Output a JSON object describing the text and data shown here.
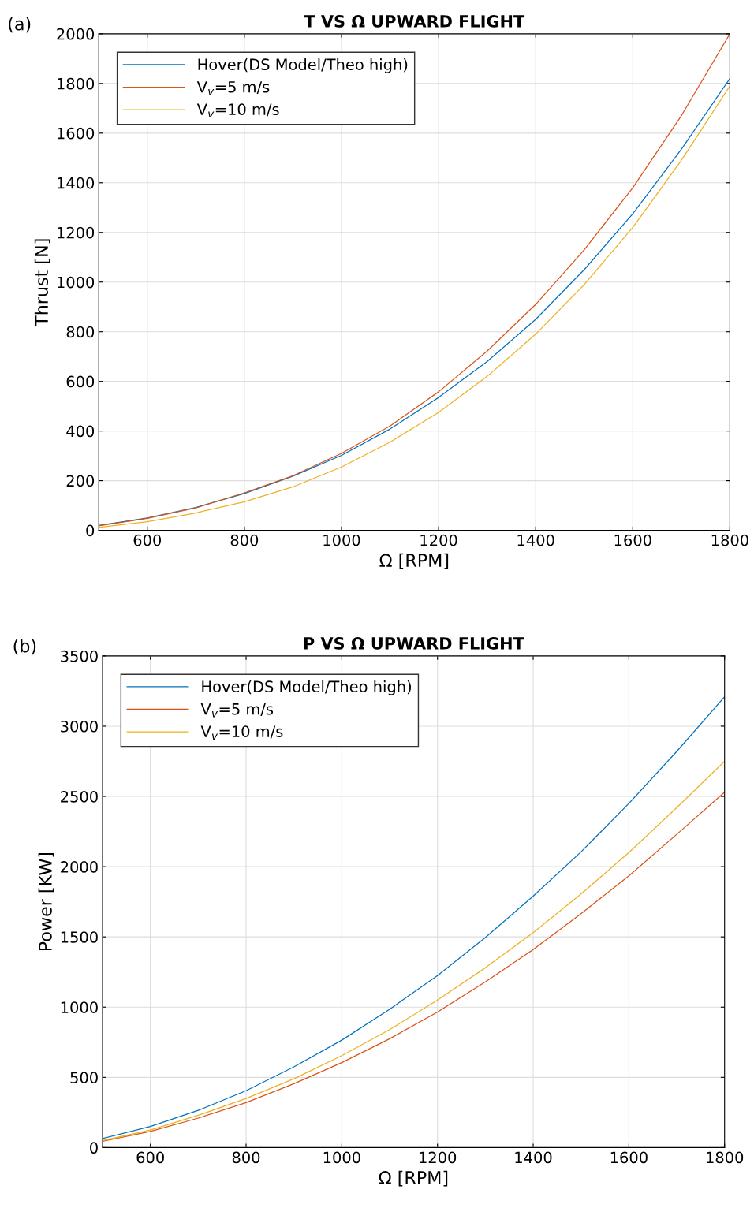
{
  "chart_data": [
    {
      "type": "line",
      "title": "T VS Ω UPWARD FLIGHT",
      "xlabel": "Ω [RPM]",
      "ylabel": "Thrust [N]",
      "annotations": [
        "(a)"
      ],
      "x": [
        500,
        600,
        700,
        800,
        900,
        1000,
        1100,
        1200,
        1300,
        1400,
        1500,
        1600,
        1700,
        1800
      ],
      "xlim": [
        500,
        1800
      ],
      "xticks": [
        600,
        800,
        1000,
        1200,
        1400,
        1600,
        1800
      ],
      "ylim": [
        0,
        2000
      ],
      "yticks": [
        0,
        200,
        400,
        600,
        800,
        1000,
        1200,
        1400,
        1600,
        1800,
        2000
      ],
      "grid": true,
      "legend": "top left",
      "marker": "none",
      "line_style": "solid",
      "series": [
        {
          "name": "Hover(DS Model/Theo high)",
          "color": "#0072bd",
          "values": [
            20,
            50,
            92,
            148,
            218,
            302,
            408,
            535,
            680,
            850,
            1050,
            1275,
            1535,
            1820
          ]
        },
        {
          "name": "V$_{v}$=5 m/s",
          "color": "#d95319",
          "values": [
            18,
            48,
            90,
            151,
            220,
            310,
            420,
            558,
            722,
            910,
            1130,
            1380,
            1670,
            2000
          ]
        },
        {
          "name": "V$_{v}$=10 m/s",
          "color": "#edb120",
          "values": [
            12,
            35,
            70,
            115,
            175,
            255,
            355,
            475,
            620,
            790,
            990,
            1220,
            1490,
            1790
          ]
        }
      ]
    },
    {
      "type": "line",
      "title": "P VS Ω UPWARD FLIGHT",
      "xlabel": "Ω [RPM]",
      "ylabel": "Power [KW]",
      "annotations": [
        "(b)"
      ],
      "x": [
        500,
        600,
        700,
        800,
        900,
        1000,
        1100,
        1200,
        1300,
        1400,
        1500,
        1600,
        1700,
        1800
      ],
      "xlim": [
        500,
        1800
      ],
      "xticks": [
        600,
        800,
        1000,
        1200,
        1400,
        1600,
        1800
      ],
      "ylim": [
        0,
        3500
      ],
      "yticks": [
        0,
        500,
        1000,
        1500,
        2000,
        2500,
        3000,
        3500
      ],
      "grid": true,
      "legend": "top left",
      "marker": "none",
      "line_style": "solid",
      "series": [
        {
          "name": "Hover(DS Model/Theo high)",
          "color": "#0072bd",
          "values": [
            65,
            150,
            265,
            405,
            575,
            765,
            985,
            1225,
            1495,
            1790,
            2105,
            2450,
            2820,
            3210
          ]
        },
        {
          "name": "V$_{v}$=5 m/s",
          "color": "#d95319",
          "values": [
            45,
            115,
            210,
            320,
            455,
            605,
            775,
            965,
            1180,
            1410,
            1665,
            1935,
            2230,
            2530
          ]
        },
        {
          "name": "V$_{v}$=10 m/s",
          "color": "#edb120",
          "values": [
            50,
            125,
            230,
            350,
            490,
            655,
            840,
            1050,
            1280,
            1530,
            1805,
            2100,
            2420,
            2750
          ]
        }
      ]
    }
  ]
}
